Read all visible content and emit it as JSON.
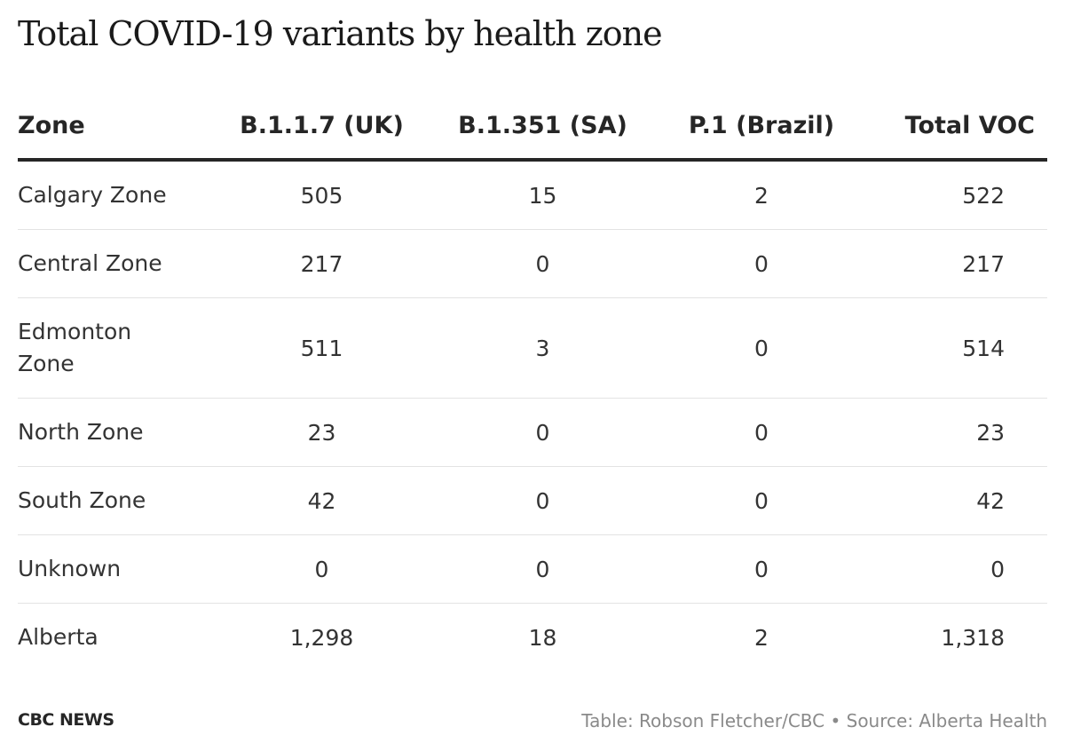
{
  "title": "Total COVID-19 variants by health zone",
  "chart_data": {
    "type": "table",
    "title": "Total COVID-19 variants by health zone",
    "columns": [
      "Zone",
      "B.1.1.7 (UK)",
      "B.1.351 (SA)",
      "P.1 (Brazil)",
      "Total VOC"
    ],
    "rows": [
      {
        "zone": "Calgary Zone",
        "uk": "505",
        "sa": "15",
        "brazil": "2",
        "total": "522"
      },
      {
        "zone": "Central Zone",
        "uk": "217",
        "sa": "0",
        "brazil": "0",
        "total": "217"
      },
      {
        "zone": "Edmonton Zone",
        "uk": "511",
        "sa": "3",
        "brazil": "0",
        "total": "514"
      },
      {
        "zone": "North Zone",
        "uk": "23",
        "sa": "0",
        "brazil": "0",
        "total": "23"
      },
      {
        "zone": "South Zone",
        "uk": "42",
        "sa": "0",
        "brazil": "0",
        "total": "42"
      },
      {
        "zone": "Unknown",
        "uk": "0",
        "sa": "0",
        "brazil": "0",
        "total": "0"
      },
      {
        "zone": "Alberta",
        "uk": "1,298",
        "sa": "18",
        "brazil": "2",
        "total": "1,318"
      }
    ]
  },
  "footer": {
    "brand": "CBC NEWS",
    "credit": "Table: Robson Fletcher/CBC • Source: Alberta Health"
  },
  "colors": {
    "text": "#262626",
    "header_rule": "#262626",
    "row_rule": "#e3e3e3",
    "credit": "#8a8a8a"
  }
}
